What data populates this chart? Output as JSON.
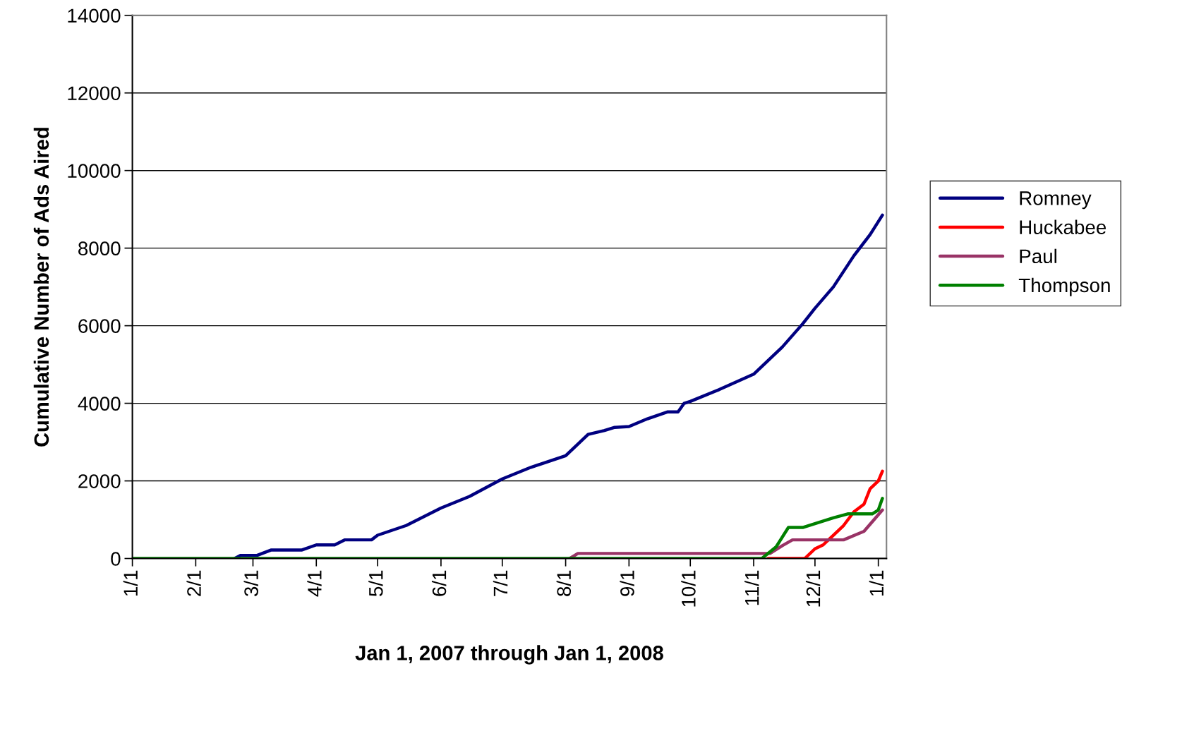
{
  "chart_data": {
    "type": "line",
    "xlabel": "Jan 1, 2007 through Jan 1, 2008",
    "ylabel": "Cumulative Number of Ads Aired",
    "xlim": [
      "2007-01-01",
      "2008-01-05"
    ],
    "xticks": [
      {
        "value": "2007-01-01",
        "label": "1/1"
      },
      {
        "value": "2007-02-01",
        "label": "2/1"
      },
      {
        "value": "2007-03-01",
        "label": "3/1"
      },
      {
        "value": "2007-04-01",
        "label": "4/1"
      },
      {
        "value": "2007-05-01",
        "label": "5/1"
      },
      {
        "value": "2007-06-01",
        "label": "6/1"
      },
      {
        "value": "2007-07-01",
        "label": "7/1"
      },
      {
        "value": "2007-08-01",
        "label": "8/1"
      },
      {
        "value": "2007-09-01",
        "label": "9/1"
      },
      {
        "value": "2007-10-01",
        "label": "10/1"
      },
      {
        "value": "2007-11-01",
        "label": "11/1"
      },
      {
        "value": "2007-12-01",
        "label": "12/1"
      },
      {
        "value": "2008-01-01",
        "label": "1/1"
      }
    ],
    "ylim": [
      0,
      14000
    ],
    "yticks": [
      0,
      2000,
      4000,
      6000,
      8000,
      10000,
      12000,
      14000
    ],
    "grid": "y",
    "legend": "right",
    "marker": "none",
    "line_style": "solid",
    "series": [
      {
        "name": "Romney",
        "color": "#000080",
        "x": [
          "2007-02-20",
          "2007-02-23",
          "2007-03-03",
          "2007-03-10",
          "2007-03-25",
          "2007-04-01",
          "2007-04-10",
          "2007-04-15",
          "2007-04-28",
          "2007-05-01",
          "2007-05-15",
          "2007-06-01",
          "2007-06-15",
          "2007-07-01",
          "2007-07-15",
          "2007-08-01",
          "2007-08-08",
          "2007-08-12",
          "2007-08-20",
          "2007-08-25",
          "2007-09-01",
          "2007-09-10",
          "2007-09-20",
          "2007-09-25",
          "2007-09-28",
          "2007-10-01",
          "2007-10-15",
          "2007-11-01",
          "2007-11-08",
          "2007-11-15",
          "2007-11-25",
          "2007-12-01",
          "2007-12-10",
          "2007-12-20",
          "2007-12-28",
          "2008-01-03"
        ],
        "values": [
          0,
          80,
          80,
          220,
          220,
          350,
          350,
          480,
          480,
          600,
          850,
          1300,
          1600,
          2050,
          2350,
          2650,
          3000,
          3200,
          3300,
          3380,
          3400,
          3600,
          3780,
          3780,
          4000,
          4050,
          4350,
          4750,
          5100,
          5450,
          6050,
          6450,
          7000,
          7800,
          8350,
          8850
        ]
      },
      {
        "name": "Huckabee",
        "color": "#ff0000",
        "x": [
          "2007-11-08",
          "2007-11-26",
          "2007-12-01",
          "2007-12-05",
          "2007-12-10",
          "2007-12-15",
          "2007-12-20",
          "2007-12-25",
          "2007-12-28",
          "2008-01-01",
          "2008-01-03"
        ],
        "values": [
          0,
          0,
          250,
          350,
          600,
          850,
          1200,
          1400,
          1800,
          2000,
          2250
        ]
      },
      {
        "name": "Paul",
        "color": "#993366",
        "x": [
          "2007-08-03",
          "2007-08-07",
          "2007-11-09",
          "2007-11-15",
          "2007-11-20",
          "2007-12-15",
          "2007-12-25",
          "2008-01-03"
        ],
        "values": [
          0,
          130,
          130,
          330,
          480,
          480,
          700,
          1250
        ]
      },
      {
        "name": "Thompson",
        "color": "#008000",
        "x": [
          "2007-01-01",
          "2007-11-05",
          "2007-11-12",
          "2007-11-18",
          "2007-11-25",
          "2007-12-01",
          "2007-12-10",
          "2007-12-17",
          "2007-12-29",
          "2008-01-01",
          "2008-01-03"
        ],
        "values": [
          0,
          0,
          300,
          800,
          800,
          900,
          1050,
          1150,
          1150,
          1250,
          1550
        ]
      }
    ]
  }
}
